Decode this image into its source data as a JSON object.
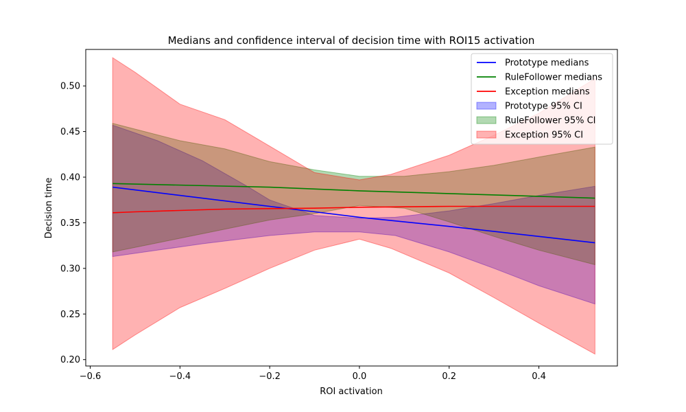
{
  "chart_data": {
    "type": "line",
    "title": "Medians and confidence interval of decision time with ROI15 activation",
    "xlabel": "ROI activation",
    "ylabel": "Decision time",
    "xlim": [
      -0.61,
      0.575
    ],
    "ylim": [
      0.193,
      0.54
    ],
    "xticks": [
      -0.6,
      -0.4,
      -0.2,
      0.0,
      0.2,
      0.4
    ],
    "xtick_labels": [
      "−0.6",
      "−0.4",
      "−0.2",
      "0.0",
      "0.2",
      "0.4"
    ],
    "yticks": [
      0.2,
      0.25,
      0.3,
      0.35,
      0.4,
      0.45,
      0.5
    ],
    "ytick_labels": [
      "0.20",
      "0.25",
      "0.30",
      "0.35",
      "0.40",
      "0.45",
      "0.50"
    ],
    "grid": false,
    "legend_position": "top-right",
    "series": [
      {
        "name": "Prototype medians",
        "kind": "line",
        "color": "#0000ff",
        "x": [
          -0.55,
          -0.4,
          -0.2,
          0.0,
          0.2,
          0.4,
          0.525
        ],
        "y": [
          0.389,
          0.38,
          0.368,
          0.356,
          0.346,
          0.335,
          0.328
        ]
      },
      {
        "name": "RuleFollower medians",
        "kind": "line",
        "color": "#008000",
        "x": [
          -0.55,
          -0.2,
          0.0,
          0.2,
          0.4,
          0.525
        ],
        "y": [
          0.393,
          0.389,
          0.385,
          0.382,
          0.379,
          0.377
        ]
      },
      {
        "name": "Exception medians",
        "kind": "line",
        "color": "#ff0000",
        "x": [
          -0.55,
          -0.5,
          -0.3,
          -0.1,
          0.0,
          0.2,
          0.525
        ],
        "y": [
          0.361,
          0.362,
          0.365,
          0.366,
          0.367,
          0.368,
          0.368
        ]
      },
      {
        "name": "Prototype 95% CI",
        "kind": "band",
        "color": "#0000ff",
        "opacity": 0.3,
        "x": [
          -0.55,
          -0.45,
          -0.35,
          -0.25,
          -0.2,
          -0.1,
          0.0,
          0.08,
          0.2,
          0.3,
          0.4,
          0.525
        ],
        "upper": [
          0.457,
          0.44,
          0.418,
          0.39,
          0.375,
          0.358,
          0.355,
          0.356,
          0.363,
          0.371,
          0.38,
          0.39
        ],
        "lower": [
          0.313,
          0.32,
          0.327,
          0.333,
          0.336,
          0.34,
          0.34,
          0.336,
          0.318,
          0.3,
          0.281,
          0.261
        ]
      },
      {
        "name": "RuleFollower 95% CI",
        "kind": "band",
        "color": "#008000",
        "opacity": 0.3,
        "x": [
          -0.55,
          -0.4,
          -0.3,
          -0.2,
          -0.1,
          0.0,
          0.1,
          0.2,
          0.3,
          0.4,
          0.525
        ],
        "upper": [
          0.459,
          0.44,
          0.431,
          0.417,
          0.408,
          0.401,
          0.401,
          0.406,
          0.413,
          0.422,
          0.433
        ],
        "lower": [
          0.318,
          0.333,
          0.343,
          0.353,
          0.36,
          0.369,
          0.366,
          0.351,
          0.335,
          0.32,
          0.304
        ]
      },
      {
        "name": "Exception 95% CI",
        "kind": "band",
        "color": "#ff0000",
        "opacity": 0.3,
        "x": [
          -0.55,
          -0.5,
          -0.4,
          -0.3,
          -0.2,
          -0.1,
          0.0,
          0.07,
          0.2,
          0.3,
          0.4,
          0.525
        ],
        "upper": [
          0.531,
          0.515,
          0.48,
          0.463,
          0.434,
          0.405,
          0.397,
          0.403,
          0.424,
          0.446,
          0.47,
          0.508
        ],
        "lower": [
          0.211,
          0.227,
          0.257,
          0.278,
          0.3,
          0.32,
          0.332,
          0.322,
          0.295,
          0.268,
          0.24,
          0.206
        ]
      }
    ]
  }
}
